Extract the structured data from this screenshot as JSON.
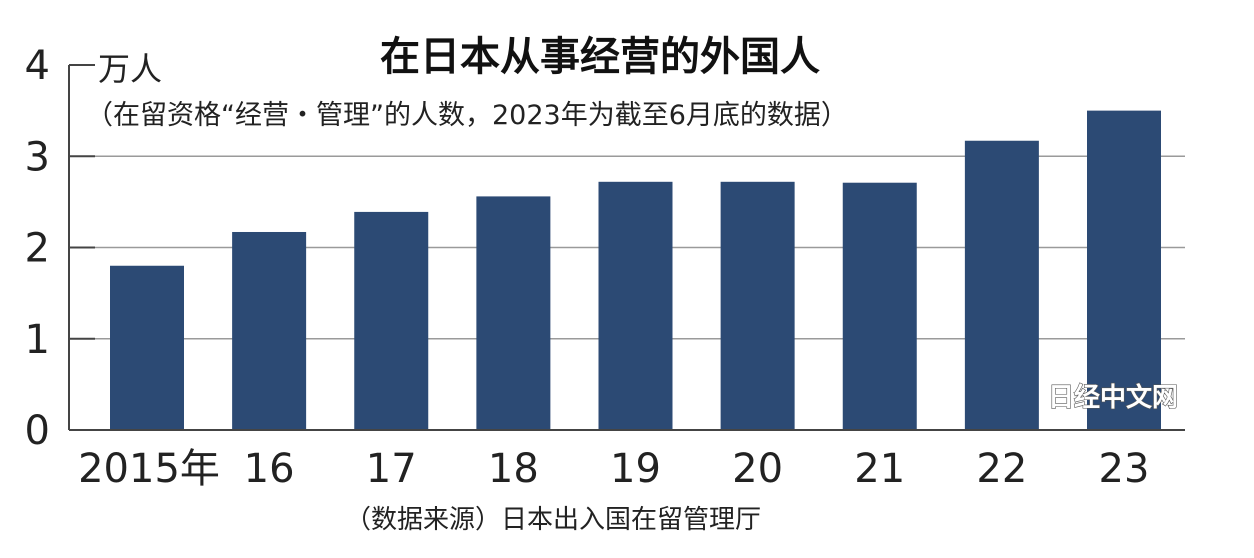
{
  "chart_data": {
    "type": "bar",
    "title": "在日本从事经营的外国人",
    "unit_label": "万人",
    "subtitle": "（在留资格“经营・管理”的人数，2023年为截至6月底的数据）",
    "categories": [
      "2015年",
      "16",
      "17",
      "18",
      "19",
      "20",
      "21",
      "22",
      "23"
    ],
    "values": [
      1.8,
      2.17,
      2.39,
      2.56,
      2.72,
      2.72,
      2.71,
      3.17,
      3.5
    ],
    "ylim": [
      0,
      4
    ],
    "yticks": [
      "0",
      "1",
      "2",
      "3",
      "4"
    ],
    "grid": true,
    "bar_color": "#2c4a74",
    "source": "（数据来源）日本出入国在留管理厅",
    "watermark": "日经中文网"
  }
}
